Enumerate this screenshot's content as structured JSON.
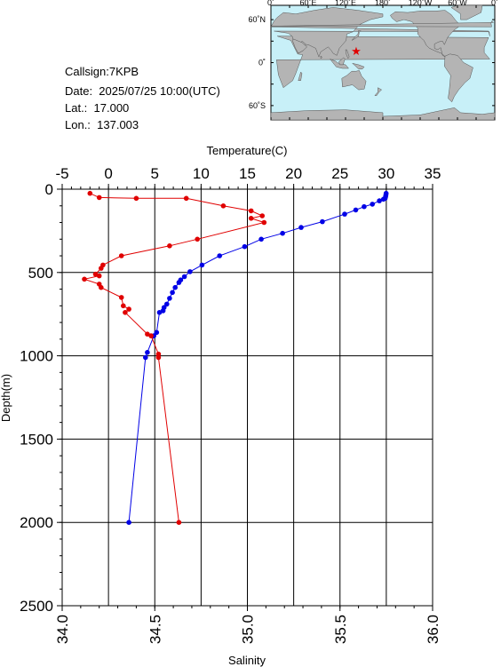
{
  "station": {
    "callsign": "Callsign:7KPB",
    "date": "Date:  2025/07/25 10:00(UTC)",
    "lat": "Lat.:  17.000",
    "lon": "Lon.:  137.003"
  },
  "map": {
    "top_labels": [
      "0˚",
      "60˚E",
      "120˚E",
      "180˚",
      "120˚W",
      "60˚W",
      "0˚"
    ],
    "lat_labels": [
      "60˚N",
      "0˚",
      "60˚S"
    ],
    "ocean_color": "#c8f0f8",
    "land_color": "#b4b4b4",
    "marker_color": "#e00000",
    "marker_lon": 137.003,
    "marker_lat": 17.0
  },
  "chart_data": {
    "type": "line",
    "top_axis": {
      "label": "Temperature(C)",
      "range": [
        -5,
        35
      ],
      "ticks": [
        "-5",
        "0",
        "5",
        "10",
        "15",
        "20",
        "25",
        "30",
        "35"
      ]
    },
    "bottom_axis": {
      "label": "Salinity",
      "range": [
        34.0,
        36.0
      ],
      "ticks": [
        "34.0",
        "34.5",
        "35.0",
        "35.5",
        "36.0"
      ]
    },
    "y_axis": {
      "label": "Depth(m)",
      "range": [
        0,
        2500
      ],
      "inverted": true,
      "ticks": [
        "0",
        "500",
        "1000",
        "1500",
        "2000",
        "2500"
      ]
    },
    "grid": true,
    "series": [
      {
        "axis": "temperature",
        "color": "#0000e6",
        "points": [
          [
            29.98,
            25
          ],
          [
            29.95,
            35
          ],
          [
            29.93,
            45
          ],
          [
            29.88,
            55
          ],
          [
            29.7,
            60
          ],
          [
            29.25,
            70
          ],
          [
            28.5,
            90
          ],
          [
            27.6,
            105
          ],
          [
            26.7,
            125
          ],
          [
            25.5,
            150
          ],
          [
            23.1,
            195
          ],
          [
            20.8,
            230
          ],
          [
            18.8,
            265
          ],
          [
            16.5,
            300
          ],
          [
            14.7,
            345
          ],
          [
            12.0,
            400
          ],
          [
            10.1,
            455
          ],
          [
            8.8,
            495
          ],
          [
            8.2,
            525
          ],
          [
            7.8,
            545
          ],
          [
            7.6,
            560
          ],
          [
            7.2,
            590
          ],
          [
            6.9,
            620
          ],
          [
            6.6,
            655
          ],
          [
            6.3,
            690
          ],
          [
            6.0,
            710
          ],
          [
            5.9,
            730
          ],
          [
            5.5,
            740
          ],
          [
            5.2,
            860
          ],
          [
            4.9,
            880
          ],
          [
            4.2,
            980
          ],
          [
            4.0,
            1010
          ],
          [
            2.2,
            2000
          ]
        ]
      },
      {
        "axis": "salinity",
        "color": "#e00000",
        "points": [
          [
            34.15,
            25
          ],
          [
            34.2,
            50
          ],
          [
            34.4,
            55
          ],
          [
            34.67,
            55
          ],
          [
            34.87,
            100
          ],
          [
            35.02,
            130
          ],
          [
            35.08,
            160
          ],
          [
            35.02,
            175
          ],
          [
            35.09,
            200
          ],
          [
            34.73,
            300
          ],
          [
            34.58,
            340
          ],
          [
            34.32,
            400
          ],
          [
            34.22,
            455
          ],
          [
            34.21,
            475
          ],
          [
            34.18,
            510
          ],
          [
            34.2,
            520
          ],
          [
            34.12,
            540
          ],
          [
            34.2,
            570
          ],
          [
            34.21,
            590
          ],
          [
            34.32,
            650
          ],
          [
            34.33,
            700
          ],
          [
            34.36,
            720
          ],
          [
            34.34,
            740
          ],
          [
            34.46,
            870
          ],
          [
            34.48,
            880
          ],
          [
            34.52,
            990
          ],
          [
            34.52,
            1010
          ],
          [
            34.63,
            2000
          ]
        ]
      }
    ]
  }
}
